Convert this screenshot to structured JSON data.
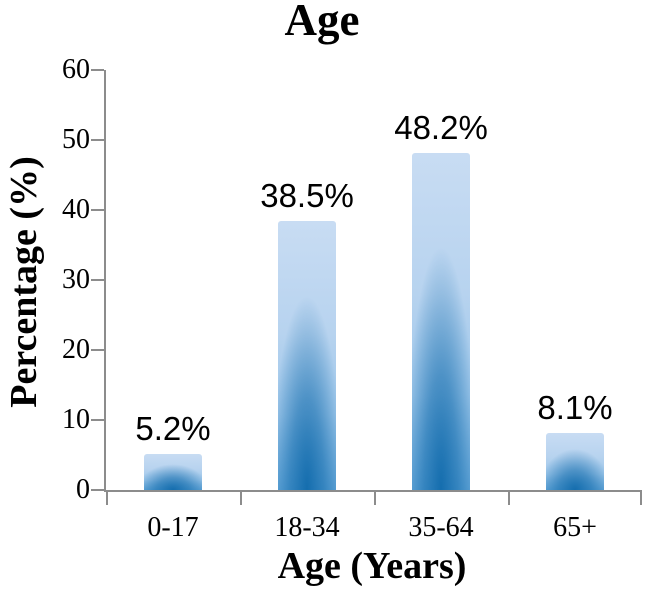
{
  "chart_data": {
    "type": "bar",
    "title": "Age",
    "xlabel": "Age (Years)",
    "ylabel": "Percentage (%)",
    "categories": [
      "0-17",
      "18-34",
      "35-64",
      "65+"
    ],
    "values": [
      5.2,
      38.5,
      48.2,
      8.1
    ],
    "data_labels": [
      "5.2%",
      "38.5%",
      "48.2%",
      "8.1%"
    ],
    "ylim": [
      0,
      60
    ],
    "yticks": [
      0,
      10,
      20,
      30,
      40,
      50,
      60
    ],
    "ytick_labels": [
      "0",
      "10",
      "20",
      "30",
      "40",
      "50",
      "60"
    ],
    "grid": false,
    "legend": "none",
    "colors": {
      "bar_top": "#c8dcf3",
      "bar_mid": "#b7d3ef",
      "bar_bottom": "#66a8da",
      "bar_glow": "#0d68aa",
      "axis": "#8c8c8c",
      "text": "#000000"
    }
  }
}
